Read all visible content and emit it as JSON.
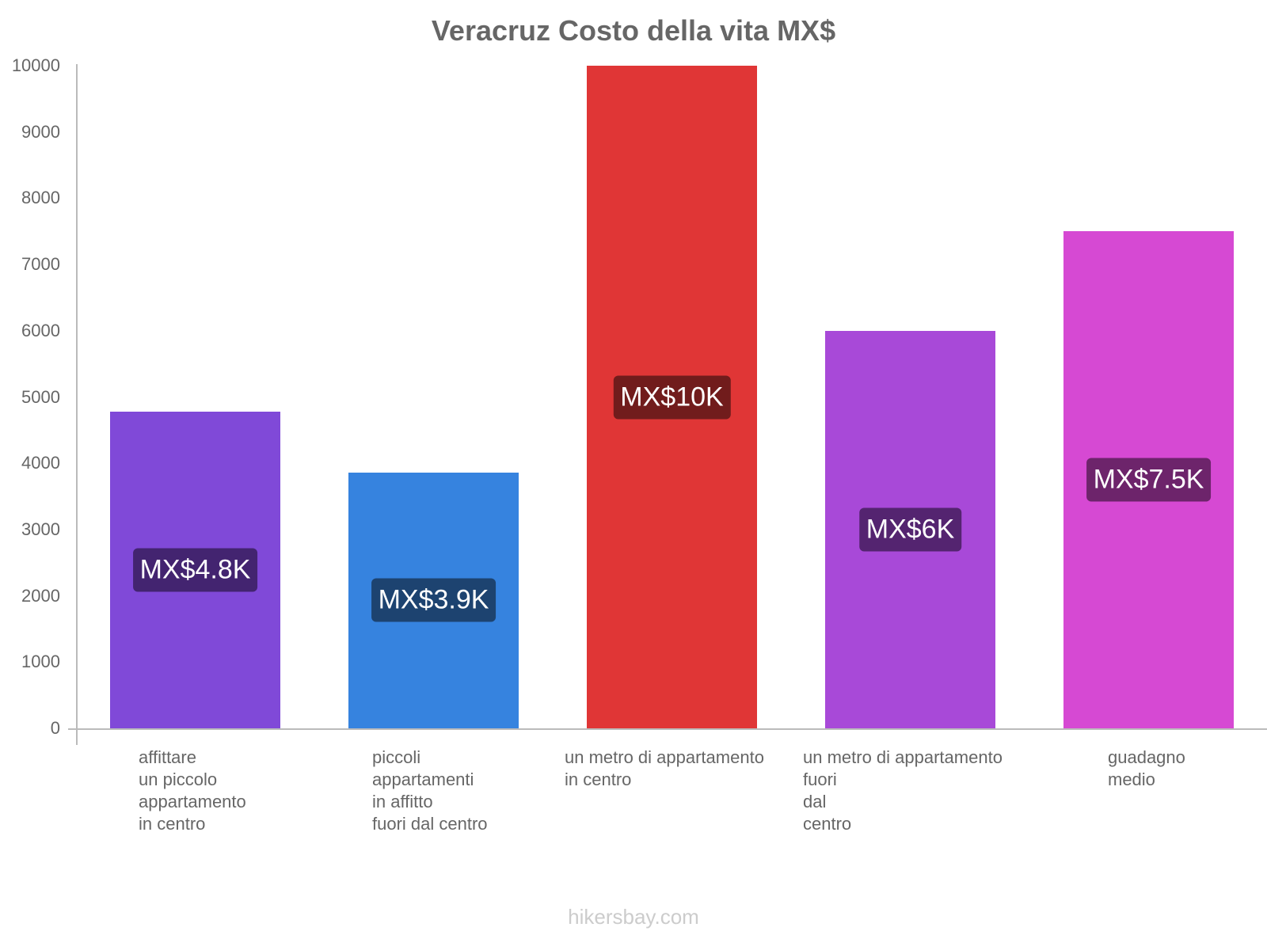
{
  "chart_data": {
    "type": "bar",
    "title": "Veracruz Costo della vita MX$",
    "xlabel": "",
    "ylabel": "",
    "ylim": [
      0,
      10000
    ],
    "yticks": [
      0,
      1000,
      2000,
      3000,
      4000,
      5000,
      6000,
      7000,
      8000,
      9000,
      10000
    ],
    "grid": false,
    "legend": "none",
    "values_note": "Values are approximate. Bar tops were estimated by eye from the screenshot and checked against the rounded bar labels.",
    "categories": [
      "affittare un piccolo appartamento in centro",
      "piccoli appartamenti in affitto fuori dal centro",
      "un metro di appartamento in centro",
      "un metro di appartamento fuori dal centro",
      "guadagno medio"
    ],
    "values": [
      4780,
      3860,
      10000,
      6000,
      7500
    ],
    "value_labels": [
      "MX$4.8K",
      "MX$3.9K",
      "MX$10K",
      "MX$6K",
      "MX$7.5K"
    ],
    "colors": [
      "#8049d8",
      "#3683df",
      "#e03636",
      "#a849d8",
      "#d649d3"
    ],
    "label_bg_colors": [
      "#432470",
      "#1d4370",
      "#711c1c",
      "#542470",
      "#6d246b"
    ]
  },
  "title": "Veracruz Costo della vita MX$",
  "y_ticks": [
    "0",
    "1000",
    "2000",
    "3000",
    "4000",
    "5000",
    "6000",
    "7000",
    "8000",
    "9000",
    "10000"
  ],
  "bars": [
    {
      "label": "MX$4.8K",
      "lines": [
        "affittare",
        "un piccolo",
        "appartamento",
        "in centro"
      ]
    },
    {
      "label": "MX$3.9K",
      "lines": [
        "piccoli",
        "appartamenti",
        "in affitto",
        "fuori dal centro"
      ]
    },
    {
      "label": "MX$10K",
      "lines": [
        "un metro di appartamento",
        "in centro"
      ]
    },
    {
      "label": "MX$6K",
      "lines": [
        "un metro di appartamento",
        "fuori",
        "dal",
        "centro"
      ]
    },
    {
      "label": "MX$7.5K",
      "lines": [
        "guadagno",
        "medio"
      ]
    }
  ],
  "watermark": "hikersbay.com"
}
